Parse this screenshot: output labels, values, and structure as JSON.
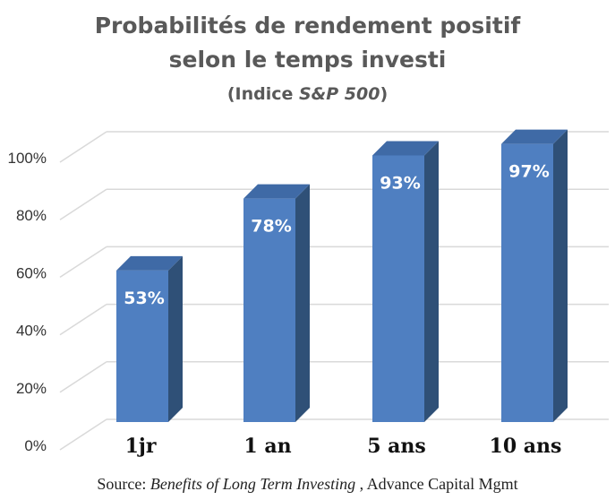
{
  "title_line1": "Probabilités de rendement positif",
  "title_line2": "selon le temps investi",
  "subtitle_prefix": "(Indice ",
  "subtitle_index": "S&P 500",
  "subtitle_suffix": ")",
  "source_prefix": "Source: ",
  "source_title": "Benefits of Long Term Investing",
  "source_suffix": " , Advance Capital Mgmt",
  "colors": {
    "bar_front": "#4f7fc1",
    "bar_side": "#2f5077",
    "bar_top": "#3f6aa6",
    "grid": "#d9d9d9",
    "tick_label": "#333333",
    "category_label": "#111111",
    "title": "#595959",
    "data_label": "#ffffff"
  },
  "chart_data": {
    "type": "bar",
    "categories": [
      "1jr",
      "1 an",
      "5 ans",
      "10 ans"
    ],
    "values": [
      53,
      78,
      93,
      97
    ],
    "data_labels": [
      "53%",
      "78%",
      "93%",
      "97%"
    ],
    "yticks": [
      "0%",
      "20%",
      "40%",
      "60%",
      "80%",
      "100%"
    ],
    "ylim": [
      0,
      100
    ],
    "grid": true,
    "style": "3d-column"
  }
}
